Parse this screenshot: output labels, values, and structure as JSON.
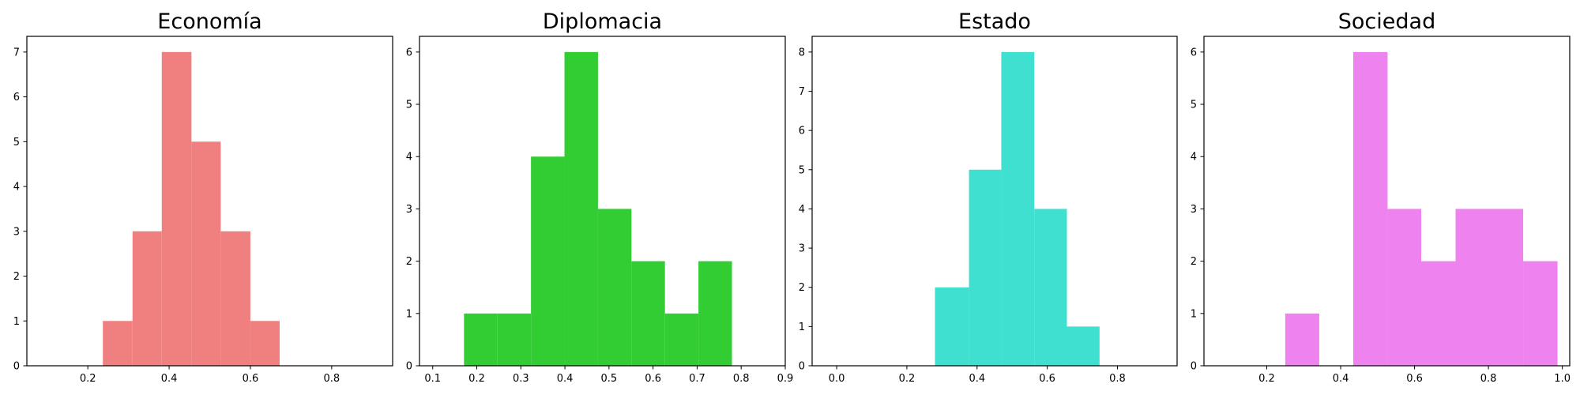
{
  "chart_data": [
    {
      "type": "bar",
      "title": "Economía",
      "color": "#f08080",
      "xlim": [
        0.05,
        0.95
      ],
      "ylim": [
        0,
        7.35
      ],
      "xticks": [
        0.2,
        0.4,
        0.6,
        0.8
      ],
      "yticks": [
        0,
        1,
        2,
        3,
        4,
        5,
        6,
        7
      ],
      "bins": [
        {
          "x0": 0.237,
          "x1": 0.31,
          "count": 1
        },
        {
          "x0": 0.31,
          "x1": 0.382,
          "count": 3
        },
        {
          "x0": 0.382,
          "x1": 0.455,
          "count": 7
        },
        {
          "x0": 0.455,
          "x1": 0.527,
          "count": 5
        },
        {
          "x0": 0.527,
          "x1": 0.6,
          "count": 3
        },
        {
          "x0": 0.6,
          "x1": 0.672,
          "count": 1
        }
      ]
    },
    {
      "type": "bar",
      "title": "Diplomacia",
      "color": "#32cd32",
      "xlim": [
        0.07,
        0.9
      ],
      "ylim": [
        0,
        6.3
      ],
      "xticks": [
        0.1,
        0.2,
        0.3,
        0.4,
        0.5,
        0.6,
        0.7,
        0.8,
        0.9
      ],
      "yticks": [
        0,
        1,
        2,
        3,
        4,
        5,
        6
      ],
      "bins": [
        {
          "x0": 0.171,
          "x1": 0.247,
          "count": 1
        },
        {
          "x0": 0.247,
          "x1": 0.323,
          "count": 1
        },
        {
          "x0": 0.323,
          "x1": 0.399,
          "count": 4
        },
        {
          "x0": 0.399,
          "x1": 0.475,
          "count": 6
        },
        {
          "x0": 0.475,
          "x1": 0.551,
          "count": 3
        },
        {
          "x0": 0.551,
          "x1": 0.627,
          "count": 2
        },
        {
          "x0": 0.627,
          "x1": 0.703,
          "count": 1
        },
        {
          "x0": 0.703,
          "x1": 0.779,
          "count": 2
        }
      ]
    },
    {
      "type": "bar",
      "title": "Estado",
      "color": "#40e0d0",
      "xlim": [
        -0.07,
        0.97
      ],
      "ylim": [
        0,
        8.4
      ],
      "xticks": [
        0.0,
        0.2,
        0.4,
        0.6,
        0.8
      ],
      "yticks": [
        0,
        1,
        2,
        3,
        4,
        5,
        6,
        7,
        8
      ],
      "bins": [
        {
          "x0": 0.28,
          "x1": 0.377,
          "count": 2
        },
        {
          "x0": 0.377,
          "x1": 0.469,
          "count": 5
        },
        {
          "x0": 0.469,
          "x1": 0.563,
          "count": 8
        },
        {
          "x0": 0.563,
          "x1": 0.656,
          "count": 4
        },
        {
          "x0": 0.656,
          "x1": 0.749,
          "count": 1
        }
      ]
    },
    {
      "type": "bar",
      "title": "Sociedad",
      "color": "#ee82ee",
      "xlim": [
        0.03,
        1.02
      ],
      "ylim": [
        0,
        6.3
      ],
      "xticks": [
        0.2,
        0.4,
        0.6,
        0.8,
        1.0
      ],
      "yticks": [
        0,
        1,
        2,
        3,
        4,
        5,
        6
      ],
      "bins": [
        {
          "x0": 0.25,
          "x1": 0.342,
          "count": 1
        },
        {
          "x0": 0.342,
          "x1": 0.434,
          "count": 0
        },
        {
          "x0": 0.434,
          "x1": 0.527,
          "count": 6
        },
        {
          "x0": 0.527,
          "x1": 0.618,
          "count": 3
        },
        {
          "x0": 0.618,
          "x1": 0.711,
          "count": 2
        },
        {
          "x0": 0.711,
          "x1": 0.803,
          "count": 3
        },
        {
          "x0": 0.803,
          "x1": 0.894,
          "count": 3
        },
        {
          "x0": 0.894,
          "x1": 0.987,
          "count": 2
        }
      ]
    }
  ]
}
